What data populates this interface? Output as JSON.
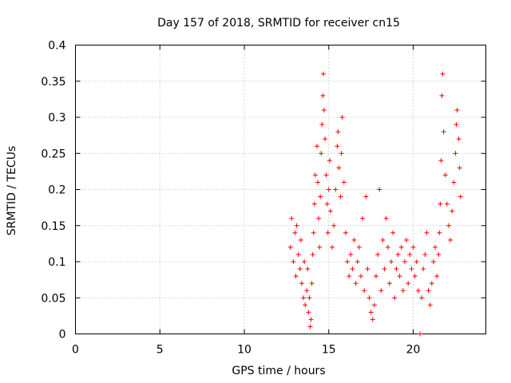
{
  "chart_data": {
    "type": "scatter",
    "title": "Day 157 of 2018, SRMTID for receiver cn15",
    "xlabel": "GPS time / hours",
    "ylabel": "SRMTID / TECUs",
    "xlim": [
      0,
      24.3
    ],
    "ylim": [
      0,
      0.4
    ],
    "xticks": [
      0,
      5,
      10,
      15,
      20
    ],
    "yticks": [
      0,
      0.05,
      0.1,
      0.15,
      0.2,
      0.25,
      0.3,
      0.35,
      0.4
    ],
    "xtick_labels": [
      "0",
      "5",
      "10",
      "15",
      "20"
    ],
    "ytick_labels": [
      "0",
      "0.05",
      "0.1",
      "0.15",
      "0.2",
      "0.25",
      "0.3",
      "0.35",
      "0.4"
    ],
    "grid": true,
    "legend": "none",
    "marker": "+",
    "color": "#ff0000",
    "series": [
      {
        "name": "SRMTID",
        "points": [
          [
            12.73,
            0.12
          ],
          [
            12.8,
            0.16
          ],
          [
            12.9,
            0.1
          ],
          [
            13.0,
            0.14
          ],
          [
            13.05,
            0.08
          ],
          [
            13.1,
            0.15
          ],
          [
            13.2,
            0.11
          ],
          [
            13.3,
            0.09
          ],
          [
            13.35,
            0.13
          ],
          [
            13.4,
            0.07
          ],
          [
            13.5,
            0.05
          ],
          [
            13.55,
            0.1
          ],
          [
            13.6,
            0.04
          ],
          [
            13.7,
            0.06
          ],
          [
            13.75,
            0.09
          ],
          [
            13.8,
            0.03
          ],
          [
            13.85,
            0.05
          ],
          [
            13.9,
            0.01
          ],
          [
            13.95,
            0.02
          ],
          [
            14.0,
            0.07
          ],
          [
            14.05,
            0.11
          ],
          [
            14.1,
            0.14
          ],
          [
            14.15,
            0.18
          ],
          [
            14.2,
            0.22
          ],
          [
            14.3,
            0.26
          ],
          [
            14.35,
            0.21
          ],
          [
            14.4,
            0.16
          ],
          [
            14.45,
            0.12
          ],
          [
            14.5,
            0.19
          ],
          [
            14.55,
            0.25
          ],
          [
            14.6,
            0.29
          ],
          [
            14.65,
            0.33
          ],
          [
            14.68,
            0.36
          ],
          [
            14.72,
            0.31
          ],
          [
            14.78,
            0.27
          ],
          [
            14.85,
            0.22
          ],
          [
            14.9,
            0.18
          ],
          [
            14.95,
            0.14
          ],
          [
            15.0,
            0.2
          ],
          [
            15.05,
            0.24
          ],
          [
            15.1,
            0.17
          ],
          [
            15.2,
            0.12
          ],
          [
            15.3,
            0.15
          ],
          [
            15.4,
            0.2
          ],
          [
            15.5,
            0.26
          ],
          [
            15.55,
            0.28
          ],
          [
            15.6,
            0.23
          ],
          [
            15.7,
            0.19
          ],
          [
            15.75,
            0.25
          ],
          [
            15.8,
            0.3
          ],
          [
            15.9,
            0.21
          ],
          [
            16.0,
            0.14
          ],
          [
            16.1,
            0.1
          ],
          [
            16.2,
            0.08
          ],
          [
            16.3,
            0.11
          ],
          [
            16.4,
            0.09
          ],
          [
            16.5,
            0.13
          ],
          [
            16.6,
            0.07
          ],
          [
            16.7,
            0.1
          ],
          [
            16.8,
            0.12
          ],
          [
            16.9,
            0.08
          ],
          [
            17.0,
            0.16
          ],
          [
            17.1,
            0.06
          ],
          [
            17.2,
            0.19
          ],
          [
            17.3,
            0.09
          ],
          [
            17.4,
            0.05
          ],
          [
            17.5,
            0.03
          ],
          [
            17.6,
            0.02
          ],
          [
            17.7,
            0.04
          ],
          [
            17.8,
            0.08
          ],
          [
            17.9,
            0.11
          ],
          [
            18.0,
            0.2
          ],
          [
            18.1,
            0.06
          ],
          [
            18.2,
            0.13
          ],
          [
            18.3,
            0.09
          ],
          [
            18.4,
            0.16
          ],
          [
            18.5,
            0.12
          ],
          [
            18.6,
            0.07
          ],
          [
            18.7,
            0.1
          ],
          [
            18.8,
            0.14
          ],
          [
            18.9,
            0.05
          ],
          [
            19.0,
            0.09
          ],
          [
            19.1,
            0.11
          ],
          [
            19.2,
            0.08
          ],
          [
            19.3,
            0.12
          ],
          [
            19.4,
            0.06
          ],
          [
            19.5,
            0.1
          ],
          [
            19.6,
            0.13
          ],
          [
            19.7,
            0.07
          ],
          [
            19.8,
            0.11
          ],
          [
            19.9,
            0.09
          ],
          [
            20.0,
            0.12
          ],
          [
            20.1,
            0.08
          ],
          [
            20.2,
            0.1
          ],
          [
            20.3,
            0.06
          ],
          [
            20.4,
            0.0
          ],
          [
            20.5,
            0.05
          ],
          [
            20.6,
            0.09
          ],
          [
            20.7,
            0.11
          ],
          [
            20.8,
            0.14
          ],
          [
            20.9,
            0.06
          ],
          [
            21.0,
            0.04
          ],
          [
            21.1,
            0.07
          ],
          [
            21.2,
            0.1
          ],
          [
            21.3,
            0.12
          ],
          [
            21.4,
            0.08
          ],
          [
            21.5,
            0.11
          ],
          [
            21.55,
            0.14
          ],
          [
            21.6,
            0.18
          ],
          [
            21.65,
            0.24
          ],
          [
            21.7,
            0.33
          ],
          [
            21.75,
            0.36
          ],
          [
            21.8,
            0.28
          ],
          [
            21.9,
            0.22
          ],
          [
            22.0,
            0.18
          ],
          [
            22.1,
            0.15
          ],
          [
            22.2,
            0.13
          ],
          [
            22.3,
            0.17
          ],
          [
            22.4,
            0.21
          ],
          [
            22.5,
            0.25
          ],
          [
            22.55,
            0.29
          ],
          [
            22.6,
            0.31
          ],
          [
            22.7,
            0.27
          ],
          [
            22.75,
            0.23
          ],
          [
            22.8,
            0.19
          ]
        ]
      }
    ]
  }
}
